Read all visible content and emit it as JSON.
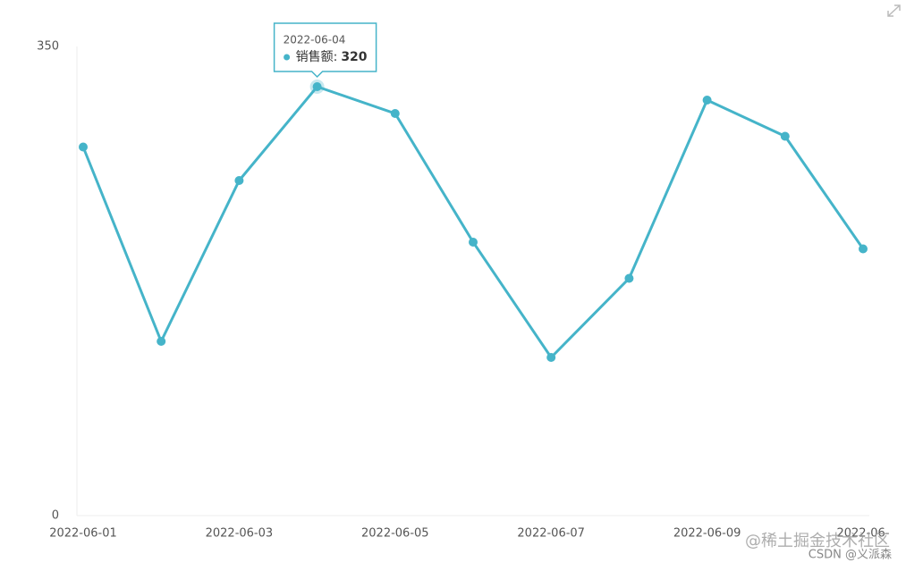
{
  "chart_data": {
    "type": "line",
    "categories": [
      "2022-06-01",
      null,
      "2022-06-03",
      null,
      "2022-06-05",
      null,
      "2022-06-07",
      null,
      "2022-06-09",
      null,
      "2022-06-"
    ],
    "series": [
      {
        "color": "#45b4c9",
        "values": [
          275,
          130,
          250,
          320,
          300,
          204,
          118,
          177,
          310,
          283,
          199
        ]
      }
    ],
    "ylim": [
      0,
      350
    ],
    "yticks": [
      0,
      350
    ],
    "tooltip": {
      "date": "2022-06-04",
      "label": "销售额:",
      "index": 3
    },
    "watermarks": [
      "@稀土掘金技术社区",
      "CSDN @义派森"
    ]
  }
}
